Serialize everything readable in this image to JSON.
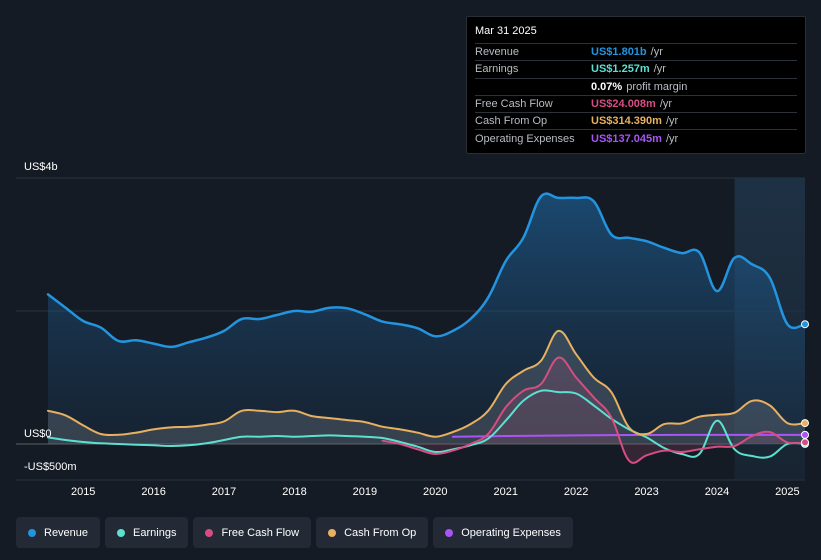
{
  "chart_data": {
    "type": "area",
    "y_axis": {
      "top_label": "US$4b",
      "zero_label": "US$0",
      "bottom_label": "-US$500m",
      "ylim": [
        -500,
        4000
      ]
    },
    "x_ticks": [
      "2015",
      "2016",
      "2017",
      "2018",
      "2019",
      "2020",
      "2021",
      "2022",
      "2023",
      "2024",
      "2025"
    ],
    "xlim": [
      2014.5,
      2025.25
    ],
    "forecast_start": 2024.25,
    "series": [
      {
        "key": "revenue",
        "name": "Revenue",
        "color": "#2394df",
        "fill": true,
        "points": [
          [
            2014.5,
            2250
          ],
          [
            2014.75,
            2050
          ],
          [
            2015,
            1850
          ],
          [
            2015.25,
            1750
          ],
          [
            2015.5,
            1550
          ],
          [
            2015.75,
            1560
          ],
          [
            2016,
            1510
          ],
          [
            2016.25,
            1460
          ],
          [
            2016.5,
            1530
          ],
          [
            2016.75,
            1600
          ],
          [
            2017,
            1700
          ],
          [
            2017.25,
            1880
          ],
          [
            2017.5,
            1880
          ],
          [
            2017.75,
            1940
          ],
          [
            2018,
            2000
          ],
          [
            2018.25,
            1990
          ],
          [
            2018.5,
            2050
          ],
          [
            2018.75,
            2040
          ],
          [
            2019,
            1950
          ],
          [
            2019.25,
            1840
          ],
          [
            2019.5,
            1800
          ],
          [
            2019.75,
            1740
          ],
          [
            2020,
            1620
          ],
          [
            2020.25,
            1700
          ],
          [
            2020.5,
            1880
          ],
          [
            2020.75,
            2200
          ],
          [
            2021,
            2750
          ],
          [
            2021.25,
            3100
          ],
          [
            2021.5,
            3720
          ],
          [
            2021.75,
            3700
          ],
          [
            2022,
            3700
          ],
          [
            2022.25,
            3650
          ],
          [
            2022.5,
            3150
          ],
          [
            2022.75,
            3100
          ],
          [
            2023,
            3050
          ],
          [
            2023.25,
            2950
          ],
          [
            2023.5,
            2870
          ],
          [
            2023.75,
            2880
          ],
          [
            2024,
            2300
          ],
          [
            2024.25,
            2800
          ],
          [
            2024.5,
            2700
          ],
          [
            2024.75,
            2500
          ],
          [
            2025,
            1801
          ],
          [
            2025.25,
            1801
          ]
        ]
      },
      {
        "key": "earnings",
        "name": "Earnings",
        "color": "#5ce0d0",
        "fill": false,
        "points": [
          [
            2014.5,
            100
          ],
          [
            2014.75,
            60
          ],
          [
            2015,
            30
          ],
          [
            2015.25,
            10
          ],
          [
            2015.5,
            0
          ],
          [
            2015.75,
            -10
          ],
          [
            2016,
            -20
          ],
          [
            2016.25,
            -30
          ],
          [
            2016.5,
            -20
          ],
          [
            2016.75,
            10
          ],
          [
            2017,
            60
          ],
          [
            2017.25,
            110
          ],
          [
            2017.5,
            110
          ],
          [
            2017.75,
            120
          ],
          [
            2018,
            110
          ],
          [
            2018.25,
            120
          ],
          [
            2018.5,
            130
          ],
          [
            2018.75,
            120
          ],
          [
            2019,
            110
          ],
          [
            2019.25,
            90
          ],
          [
            2019.5,
            30
          ],
          [
            2019.75,
            -40
          ],
          [
            2020,
            -120
          ],
          [
            2020.25,
            -80
          ],
          [
            2020.5,
            -20
          ],
          [
            2020.75,
            80
          ],
          [
            2021,
            350
          ],
          [
            2021.25,
            650
          ],
          [
            2021.5,
            800
          ],
          [
            2021.75,
            780
          ],
          [
            2022,
            760
          ],
          [
            2022.25,
            580
          ],
          [
            2022.5,
            380
          ],
          [
            2022.75,
            220
          ],
          [
            2023,
            100
          ],
          [
            2023.25,
            -60
          ],
          [
            2023.5,
            -150
          ],
          [
            2023.75,
            -150
          ],
          [
            2024,
            350
          ],
          [
            2024.25,
            -80
          ],
          [
            2024.5,
            -180
          ],
          [
            2024.75,
            -190
          ],
          [
            2025,
            1.257
          ],
          [
            2025.25,
            1.257
          ]
        ]
      },
      {
        "key": "fcf",
        "name": "Free Cash Flow",
        "color": "#d64d82",
        "fill": false,
        "points": [
          [
            2019.25,
            50
          ],
          [
            2019.5,
            0
          ],
          [
            2019.75,
            -80
          ],
          [
            2020,
            -150
          ],
          [
            2020.25,
            -100
          ],
          [
            2020.5,
            0
          ],
          [
            2020.75,
            150
          ],
          [
            2021,
            550
          ],
          [
            2021.25,
            800
          ],
          [
            2021.5,
            900
          ],
          [
            2021.75,
            1300
          ],
          [
            2022,
            1000
          ],
          [
            2022.25,
            700
          ],
          [
            2022.5,
            400
          ],
          [
            2022.75,
            -250
          ],
          [
            2023,
            -170
          ],
          [
            2023.25,
            -100
          ],
          [
            2023.5,
            -120
          ],
          [
            2023.75,
            -80
          ],
          [
            2024,
            -40
          ],
          [
            2024.25,
            -30
          ],
          [
            2024.5,
            120
          ],
          [
            2024.75,
            180
          ],
          [
            2025,
            24.008
          ],
          [
            2025.25,
            24.008
          ]
        ]
      },
      {
        "key": "cfo",
        "name": "Cash From Op",
        "color": "#e8b060",
        "fill": false,
        "points": [
          [
            2014.5,
            500
          ],
          [
            2014.75,
            430
          ],
          [
            2015,
            280
          ],
          [
            2015.25,
            150
          ],
          [
            2015.5,
            140
          ],
          [
            2015.75,
            170
          ],
          [
            2016,
            220
          ],
          [
            2016.25,
            250
          ],
          [
            2016.5,
            260
          ],
          [
            2016.75,
            290
          ],
          [
            2017,
            340
          ],
          [
            2017.25,
            500
          ],
          [
            2017.5,
            500
          ],
          [
            2017.75,
            480
          ],
          [
            2018,
            500
          ],
          [
            2018.25,
            420
          ],
          [
            2018.5,
            390
          ],
          [
            2018.75,
            360
          ],
          [
            2019,
            330
          ],
          [
            2019.25,
            260
          ],
          [
            2019.5,
            220
          ],
          [
            2019.75,
            170
          ],
          [
            2020,
            110
          ],
          [
            2020.25,
            180
          ],
          [
            2020.5,
            300
          ],
          [
            2020.75,
            500
          ],
          [
            2021,
            900
          ],
          [
            2021.25,
            1100
          ],
          [
            2021.5,
            1250
          ],
          [
            2021.75,
            1700
          ],
          [
            2022,
            1350
          ],
          [
            2022.25,
            1000
          ],
          [
            2022.5,
            780
          ],
          [
            2022.75,
            250
          ],
          [
            2023,
            150
          ],
          [
            2023.25,
            300
          ],
          [
            2023.5,
            310
          ],
          [
            2023.75,
            410
          ],
          [
            2024,
            440
          ],
          [
            2024.25,
            470
          ],
          [
            2024.5,
            650
          ],
          [
            2024.75,
            580
          ],
          [
            2025,
            314.39
          ],
          [
            2025.25,
            314.39
          ]
        ]
      },
      {
        "key": "opex",
        "name": "Operating Expenses",
        "color": "#a855f7",
        "fill": false,
        "points": [
          [
            2020.25,
            110
          ],
          [
            2021,
            120
          ],
          [
            2022,
            130
          ],
          [
            2023,
            135
          ],
          [
            2024,
            137
          ],
          [
            2025,
            137.045
          ],
          [
            2025.25,
            137.045
          ]
        ]
      }
    ]
  },
  "tooltip": {
    "date": "Mar 31 2025",
    "rows": [
      {
        "label": "Revenue",
        "value": "US$1.801b",
        "unit": "/yr",
        "color": "#2394df"
      },
      {
        "label": "Earnings",
        "value": "US$1.257m",
        "unit": "/yr",
        "color": "#5ce0d0"
      },
      {
        "label": "",
        "value": "0.07%",
        "unit": "profit margin",
        "color": "#ffffff"
      },
      {
        "label": "Free Cash Flow",
        "value": "US$24.008m",
        "unit": "/yr",
        "color": "#d64d82"
      },
      {
        "label": "Cash From Op",
        "value": "US$314.390m",
        "unit": "/yr",
        "color": "#e8b060"
      },
      {
        "label": "Operating Expenses",
        "value": "US$137.045m",
        "unit": "/yr",
        "color": "#a855f7"
      }
    ]
  },
  "legend": [
    {
      "label": "Revenue",
      "color": "#2394df"
    },
    {
      "label": "Earnings",
      "color": "#5ce0d0"
    },
    {
      "label": "Free Cash Flow",
      "color": "#d64d82"
    },
    {
      "label": "Cash From Op",
      "color": "#e8b060"
    },
    {
      "label": "Operating Expenses",
      "color": "#a855f7"
    }
  ]
}
